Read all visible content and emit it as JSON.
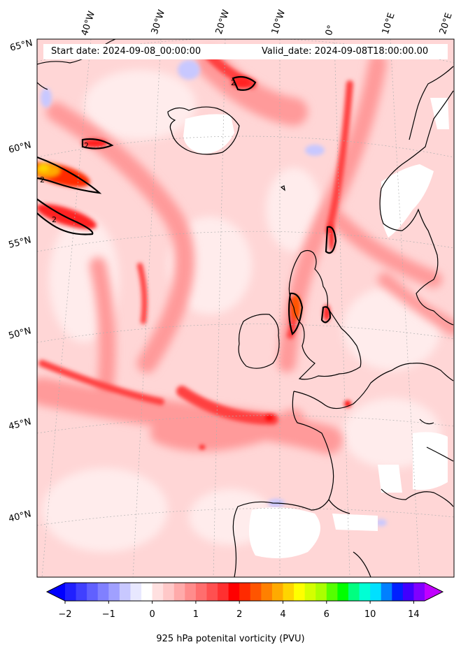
{
  "header": {
    "start_date": "Start date: 2024-09-08_00:00:00",
    "valid_date": "Valid_date: 2024-09-08T18:00:00.00"
  },
  "longitude_labels": [
    "40°W",
    "30°W",
    "20°W",
    "10°W",
    "0°",
    "10°E",
    "20°E"
  ],
  "latitude_labels": [
    "65°N",
    "60°N",
    "55°N",
    "50°N",
    "45°N",
    "40°N"
  ],
  "colorbar": {
    "label": "925 hPa potenital vorticity (PVU)",
    "tick_labels": [
      "−2",
      "−1",
      "0",
      "1",
      "2",
      "4",
      "6",
      "10",
      "14"
    ],
    "levels": [
      -2,
      -1.75,
      -1.5,
      -1.25,
      -1,
      -0.75,
      -0.5,
      -0.25,
      0,
      0.25,
      0.5,
      0.75,
      1,
      1.25,
      1.5,
      1.75,
      2,
      2.5,
      3,
      3.5,
      4,
      4.5,
      5,
      5.5,
      6,
      7,
      8,
      9,
      10,
      11,
      12,
      13,
      14,
      15
    ],
    "colors": [
      "#0000ff",
      "#2020ff",
      "#4040ff",
      "#6060ff",
      "#8080ff",
      "#a0a0ff",
      "#c8c8ff",
      "#e8e8ff",
      "#ffffff",
      "#ffe0e0",
      "#ffc8c8",
      "#ffaaaa",
      "#ff8c8c",
      "#ff6e6e",
      "#ff5050",
      "#ff3030",
      "#ff0000",
      "#ff2a00",
      "#ff5500",
      "#ff8000",
      "#ffaa00",
      "#ffd400",
      "#ffff00",
      "#d4ff00",
      "#aaff00",
      "#55ff00",
      "#00ff00",
      "#00ff80",
      "#00ffd4",
      "#00e0ff",
      "#0080ff",
      "#0020ff",
      "#4000ff",
      "#8000ff",
      "#c000ff"
    ]
  },
  "contour_level_label": "2",
  "colors": {
    "coastline": "#000000",
    "land_no_data": "#ffffff",
    "gridline": "#b0b0b0"
  }
}
